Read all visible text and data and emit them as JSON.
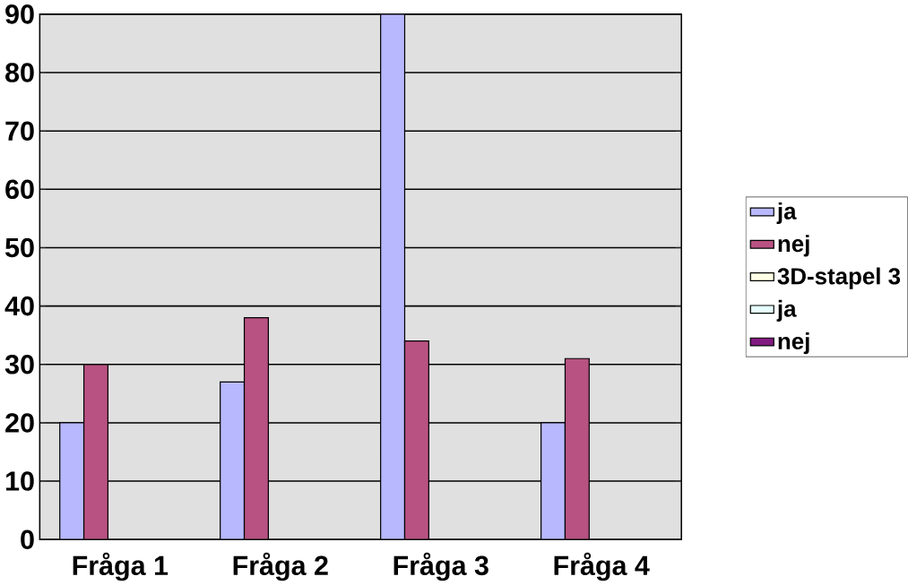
{
  "chart_data": {
    "type": "bar",
    "categories": [
      "Fråga 1",
      "Fråga 2",
      "Fråga 3",
      "Fråga 4"
    ],
    "series": [
      {
        "name": "ja",
        "color": "#b8b8ff",
        "values": [
          20,
          27,
          90,
          20
        ]
      },
      {
        "name": "nej",
        "color": "#b85282",
        "values": [
          30,
          38,
          34,
          31
        ]
      },
      {
        "name": "3D-stapel 3",
        "color": "#ffffe6",
        "values": [
          null,
          null,
          null,
          null
        ]
      },
      {
        "name": "ja",
        "color": "#e6ffff",
        "values": [
          null,
          null,
          null,
          null
        ]
      },
      {
        "name": "nej",
        "color": "#801a80",
        "values": [
          null,
          null,
          null,
          null
        ]
      }
    ],
    "ylim": [
      0,
      90
    ],
    "yticks": [
      0,
      10,
      20,
      30,
      40,
      50,
      60,
      70,
      80,
      90
    ],
    "grid": "y",
    "legend": "right"
  }
}
